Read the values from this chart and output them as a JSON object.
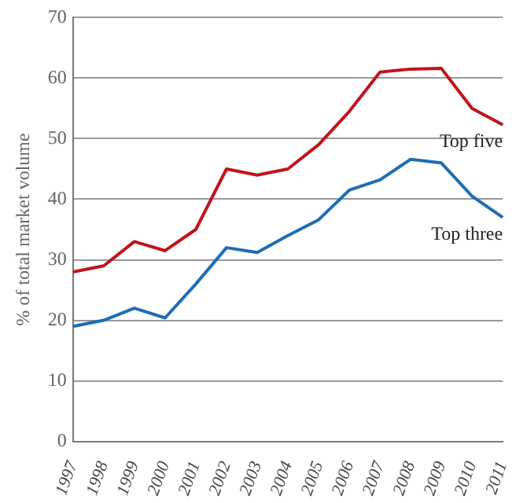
{
  "chart_data": {
    "type": "line",
    "ylabel": "% of total market volume",
    "categories": [
      "1997",
      "1998",
      "1999",
      "2000",
      "2001",
      "2002",
      "2003",
      "2004",
      "2005",
      "2006",
      "2007",
      "2008",
      "2009",
      "2010",
      "2011"
    ],
    "series": [
      {
        "name": "Top five",
        "color": "#c0141c",
        "values": [
          28,
          29,
          33,
          31.5,
          35,
          45,
          44,
          45,
          49,
          54.5,
          61,
          61.5,
          61.6,
          55,
          52.3
        ]
      },
      {
        "name": "Top three",
        "color": "#1f6db5",
        "values": [
          19,
          20,
          22,
          20.4,
          26,
          32,
          31.2,
          34,
          36.6,
          41.5,
          43.2,
          46.6,
          46,
          40.5,
          37
        ]
      }
    ],
    "ylim": [
      0,
      70
    ],
    "yticks": [
      0,
      10,
      20,
      30,
      40,
      50,
      60,
      70
    ],
    "grid": "y",
    "legend": false,
    "marker": "none",
    "line_style": "solid"
  }
}
